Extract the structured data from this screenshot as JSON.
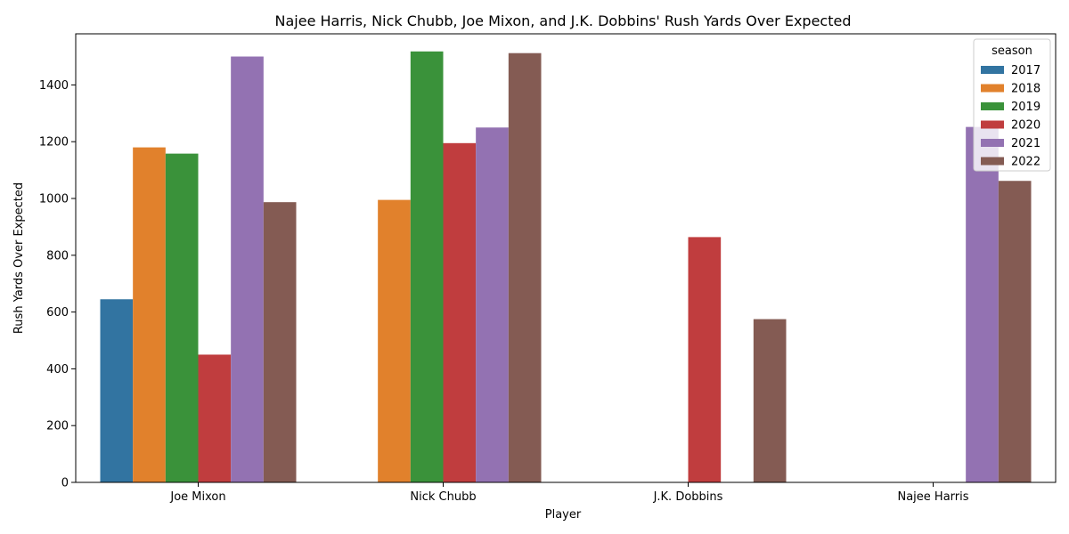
{
  "chart_data": {
    "type": "bar",
    "title": "Najee Harris, Nick Chubb, Joe Mixon, and J.K. Dobbins' Rush Yards Over Expected",
    "xlabel": "Player",
    "ylabel": "Rush Yards Over Expected",
    "categories": [
      "Joe Mixon",
      "Nick Chubb",
      "J.K. Dobbins",
      "Najee Harris"
    ],
    "ylim": [
      0,
      1580
    ],
    "yticks": [
      0,
      200,
      400,
      600,
      800,
      1000,
      1200,
      1400
    ],
    "grid": false,
    "legend": {
      "title": "season",
      "placement": "top-right"
    },
    "series": [
      {
        "name": "2017",
        "color": "#3274a1",
        "values": [
          645,
          null,
          null,
          null
        ]
      },
      {
        "name": "2018",
        "color": "#e1812c",
        "values": [
          1180,
          995,
          null,
          null
        ]
      },
      {
        "name": "2019",
        "color": "#3a923a",
        "values": [
          1158,
          1518,
          null,
          null
        ]
      },
      {
        "name": "2020",
        "color": "#c03d3e",
        "values": [
          450,
          1195,
          864,
          null
        ]
      },
      {
        "name": "2021",
        "color": "#9372b2",
        "values": [
          1500,
          1250,
          null,
          1252
        ]
      },
      {
        "name": "2022",
        "color": "#845b53",
        "values": [
          987,
          1512,
          575,
          1062
        ]
      }
    ]
  }
}
